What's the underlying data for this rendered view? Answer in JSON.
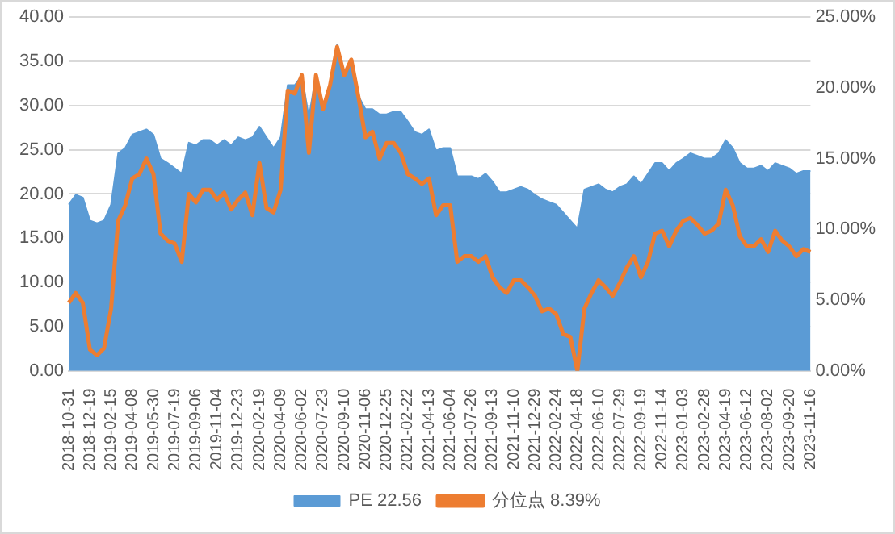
{
  "chart_data": {
    "type": "area",
    "categories": [
      "2018-10-31",
      null,
      null,
      "2018-12-19",
      null,
      null,
      "2019-02-15",
      null,
      null,
      "2019-04-08",
      null,
      null,
      "2019-05-30",
      null,
      null,
      "2019-07-19",
      null,
      null,
      "2019-09-06",
      null,
      null,
      "2019-11-04",
      null,
      null,
      "2019-12-23",
      null,
      null,
      "2020-02-19",
      null,
      null,
      "2020-04-09",
      null,
      null,
      "2020-06-02",
      null,
      null,
      "2020-07-23",
      null,
      null,
      "2020-09-10",
      null,
      null,
      "2020-11-06",
      null,
      null,
      "2020-12-25",
      null,
      null,
      "2021-02-22",
      null,
      null,
      "2021-04-13",
      null,
      null,
      "2021-06-04",
      null,
      null,
      "2021-07-26",
      null,
      null,
      "2021-09-13",
      null,
      null,
      "2021-11-10",
      null,
      null,
      "2021-12-29",
      null,
      null,
      "2022-02-24",
      null,
      null,
      "2022-04-18",
      null,
      null,
      "2022-06-10",
      null,
      null,
      "2022-07-29",
      null,
      null,
      "2022-09-19",
      null,
      null,
      "2022-11-14",
      null,
      null,
      "2023-01-03",
      null,
      null,
      "2023-02-28",
      null,
      null,
      "2023-04-19",
      null,
      null,
      "2023-06-12",
      null,
      null,
      "2023-08-02",
      null,
      null,
      "2023-09-20",
      null,
      null,
      "2023-11-16"
    ],
    "series": [
      {
        "name": "PE 22.56",
        "color": "#5b9bd5",
        "values": [
          18.8,
          19.9,
          19.6,
          17,
          16.7,
          17,
          18.8,
          24.6,
          25.2,
          26.7,
          27,
          27.3,
          26.7,
          24,
          23.5,
          22.9,
          22.3,
          25.8,
          25.5,
          26.1,
          26.1,
          25.5,
          26.1,
          25.5,
          26.4,
          26.1,
          26.4,
          27.6,
          26.4,
          25.2,
          26.4,
          32.3,
          32.3,
          33.4,
          28.7,
          33.4,
          29.9,
          32.3,
          36.9,
          32.8,
          35.2,
          31.1,
          29.6,
          29.6,
          29,
          29,
          29.3,
          29.3,
          28.2,
          27,
          26.7,
          27.3,
          24.9,
          25.2,
          25.2,
          22,
          22,
          22,
          21.7,
          22.3,
          21.4,
          20.2,
          20.2,
          20.5,
          20.8,
          20.5,
          19.9,
          19.4,
          19.1,
          18.8,
          17.9,
          17,
          16.1,
          20.5,
          20.8,
          21.1,
          20.5,
          20.2,
          20.8,
          21.1,
          22,
          21.1,
          22.3,
          23.5,
          23.5,
          22.6,
          23.5,
          24,
          24.6,
          24.3,
          24,
          24,
          24.6,
          26.1,
          25.2,
          23.5,
          22.9,
          22.9,
          23.2,
          22.6,
          23.5,
          23.2,
          22.9,
          22.3,
          22.6,
          22.6
        ]
      },
      {
        "name": "分位点 8.39%",
        "type": "line",
        "axis": "y2",
        "color": "#ed7d31",
        "values": [
          4.8,
          5.5,
          4.8,
          1.5,
          1.1,
          1.6,
          4.4,
          10.6,
          11.7,
          13.6,
          13.9,
          15,
          13.9,
          9.7,
          9.2,
          9,
          7.7,
          12.5,
          11.9,
          12.8,
          12.8,
          12.1,
          12.6,
          11.4,
          12.1,
          12.6,
          11,
          14.7,
          11.5,
          11.2,
          12.8,
          19.8,
          19.6,
          20.9,
          15.4,
          20.9,
          18.5,
          20.2,
          22.9,
          20.9,
          22,
          19.4,
          16.5,
          16.9,
          15,
          16.1,
          16.1,
          15.4,
          13.9,
          13.6,
          13.2,
          13.6,
          11,
          11.7,
          11.7,
          7.7,
          8.1,
          8.1,
          7.7,
          8.1,
          6.6,
          5.9,
          5.5,
          6.4,
          6.4,
          5.9,
          5.3,
          4.2,
          4.4,
          4,
          2.6,
          2.4,
          0,
          4.4,
          5.5,
          6.4,
          5.9,
          5.3,
          6.2,
          7.3,
          8.1,
          6.6,
          7.7,
          9.7,
          9.9,
          8.8,
          9.9,
          10.6,
          10.8,
          10.3,
          9.7,
          9.9,
          10.4,
          12.8,
          11.7,
          9.5,
          8.8,
          8.8,
          9.3,
          8.4,
          9.9,
          9.2,
          8.8,
          8.1,
          8.6,
          8.4
        ]
      }
    ],
    "ylim": [
      0,
      40
    ],
    "yticks": [
      {
        "value": 0,
        "label": "0.00"
      },
      {
        "value": 5,
        "label": "5.00"
      },
      {
        "value": 10,
        "label": "10.00"
      },
      {
        "value": 15,
        "label": "15.00"
      },
      {
        "value": 20,
        "label": "20.00"
      },
      {
        "value": 25,
        "label": "25.00"
      },
      {
        "value": 30,
        "label": "30.00"
      },
      {
        "value": 35,
        "label": "35.00"
      },
      {
        "value": 40,
        "label": "40.00"
      }
    ],
    "y2lim": [
      0,
      25
    ],
    "y2ticks": [
      {
        "value": 0,
        "label": "0.00%"
      },
      {
        "value": 5,
        "label": "5.00%"
      },
      {
        "value": 10,
        "label": "10.00%"
      },
      {
        "value": 15,
        "label": "15.00%"
      },
      {
        "value": 20,
        "label": "20.00%"
      },
      {
        "value": 25,
        "label": "25.00%"
      }
    ],
    "grid": "y",
    "legend": "bottom"
  }
}
